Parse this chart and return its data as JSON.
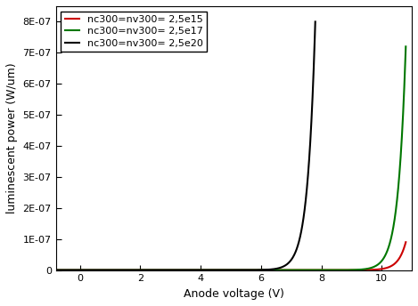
{
  "title": "",
  "xlabel": "Anode voltage (V)",
  "ylabel": "luminescent power (W/um)",
  "xlim": [
    -0.8,
    11
  ],
  "ylim": [
    0,
    8.5e-07
  ],
  "yticks": [
    0,
    1e-07,
    2e-07,
    3e-07,
    4e-07,
    5e-07,
    6e-07,
    7e-07,
    8e-07
  ],
  "ytick_labels": [
    "0",
    "1E-07",
    "2E-07",
    "3E-07",
    "4E-07",
    "5E-07",
    "6E-07",
    "7E-07",
    "8E-07"
  ],
  "xticks": [
    0,
    2,
    4,
    6,
    8,
    10
  ],
  "xtick_labels": [
    "0",
    "2",
    "4",
    "6",
    "8",
    "10"
  ],
  "curves": [
    {
      "label": "nc300=nv300= 2,5e15",
      "color": "#cc0000",
      "onset": 7.8,
      "v_end": 10.8,
      "max_val": 9e-08,
      "exponent": 4.0
    },
    {
      "label": "nc300=nv300= 2,5e17",
      "color": "#007700",
      "onset": 6.8,
      "v_end": 10.8,
      "max_val": 7.2e-07,
      "exponent": 4.0
    },
    {
      "label": "nc300=nv300= 2,5e20",
      "color": "#000000",
      "onset": 4.8,
      "v_end": 7.8,
      "max_val": 8e-07,
      "exponent": 4.0
    }
  ],
  "legend_loc": "upper left",
  "background_color": "#ffffff",
  "font_size": 9,
  "legend_fontsize": 8
}
